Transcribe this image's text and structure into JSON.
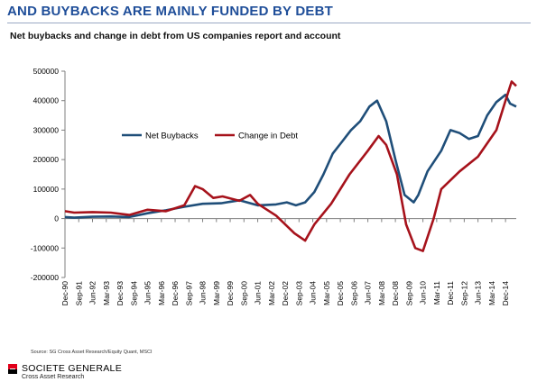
{
  "header": {
    "title": "AND BUYBACKS ARE MAINLY FUNDED BY DEBT",
    "subtitle": "Net buybacks and change in debt from US companies report and account"
  },
  "footer": {
    "source": "Source: SG Cross Asset Research/Equity Quant, MSCI",
    "brand_name": "SOCIETE GENERALE",
    "brand_sub": "Cross Asset Research"
  },
  "colors": {
    "accent": "#1f4e99",
    "brand_red": "#e2001a"
  },
  "chart_data": {
    "type": "line",
    "title": "Net buybacks and change in debt from US companies report and account",
    "xlabel": "",
    "ylabel": "",
    "x_domain": [
      "1990-12",
      "2015-07"
    ],
    "ylim": [
      -200000,
      500000
    ],
    "y_ticks": [
      -200000,
      -100000,
      0,
      100000,
      200000,
      300000,
      400000,
      500000
    ],
    "x_ticks": [
      {
        "date": "1990-12",
        "label": "Dec-90"
      },
      {
        "date": "1991-09",
        "label": "Sep-91"
      },
      {
        "date": "1992-06",
        "label": "Jun-92"
      },
      {
        "date": "1993-03",
        "label": "Mar-93"
      },
      {
        "date": "1993-12",
        "label": "Dec-93"
      },
      {
        "date": "1994-09",
        "label": "Sep-94"
      },
      {
        "date": "1995-06",
        "label": "Jun-95"
      },
      {
        "date": "1996-03",
        "label": "Mar-96"
      },
      {
        "date": "1996-12",
        "label": "Dec-96"
      },
      {
        "date": "1997-09",
        "label": "Sep-97"
      },
      {
        "date": "1998-06",
        "label": "Jun-98"
      },
      {
        "date": "1999-03",
        "label": "Mar-99"
      },
      {
        "date": "1999-12",
        "label": "Dec-99"
      },
      {
        "date": "2000-09",
        "label": "Sep-00"
      },
      {
        "date": "2001-06",
        "label": "Jun-01"
      },
      {
        "date": "2002-03",
        "label": "Mar-02"
      },
      {
        "date": "2002-12",
        "label": "Dec-02"
      },
      {
        "date": "2003-09",
        "label": "Sep-03"
      },
      {
        "date": "2004-06",
        "label": "Jun-04"
      },
      {
        "date": "2005-03",
        "label": "Mar-05"
      },
      {
        "date": "2005-12",
        "label": "Dec-05"
      },
      {
        "date": "2006-09",
        "label": "Sep-06"
      },
      {
        "date": "2007-06",
        "label": "Jun-07"
      },
      {
        "date": "2008-03",
        "label": "Mar-08"
      },
      {
        "date": "2008-12",
        "label": "Dec-08"
      },
      {
        "date": "2009-09",
        "label": "Sep-09"
      },
      {
        "date": "2010-06",
        "label": "Jun-10"
      },
      {
        "date": "2011-03",
        "label": "Mar-11"
      },
      {
        "date": "2011-12",
        "label": "Dec-11"
      },
      {
        "date": "2012-09",
        "label": "Sep-12"
      },
      {
        "date": "2013-06",
        "label": "Jun-13"
      },
      {
        "date": "2014-03",
        "label": "Mar-14"
      },
      {
        "date": "2014-12",
        "label": "Dec-14"
      }
    ],
    "grid": false,
    "legend_position": "top-center",
    "series": [
      {
        "name": "Net Buybacks",
        "color": "#1f4e79",
        "points": [
          [
            "1990-12",
            5000
          ],
          [
            "1991-06",
            3000
          ],
          [
            "1992-06",
            6000
          ],
          [
            "1993-06",
            7000
          ],
          [
            "1994-06",
            5000
          ],
          [
            "1995-06",
            18000
          ],
          [
            "1996-06",
            28000
          ],
          [
            "1997-06",
            40000
          ],
          [
            "1998-06",
            50000
          ],
          [
            "1999-06",
            52000
          ],
          [
            "2000-06",
            62000
          ],
          [
            "2001-06",
            45000
          ],
          [
            "2002-06",
            48000
          ],
          [
            "2003-01",
            55000
          ],
          [
            "2003-07",
            45000
          ],
          [
            "2004-01",
            55000
          ],
          [
            "2004-07",
            90000
          ],
          [
            "2005-01",
            150000
          ],
          [
            "2005-07",
            220000
          ],
          [
            "2006-01",
            260000
          ],
          [
            "2006-07",
            300000
          ],
          [
            "2007-01",
            330000
          ],
          [
            "2007-07",
            380000
          ],
          [
            "2007-12",
            400000
          ],
          [
            "2008-06",
            330000
          ],
          [
            "2008-12",
            200000
          ],
          [
            "2009-06",
            80000
          ],
          [
            "2009-12",
            55000
          ],
          [
            "2010-03",
            80000
          ],
          [
            "2010-09",
            160000
          ],
          [
            "2011-06",
            230000
          ],
          [
            "2011-12",
            300000
          ],
          [
            "2012-06",
            290000
          ],
          [
            "2012-12",
            270000
          ],
          [
            "2013-06",
            280000
          ],
          [
            "2013-12",
            350000
          ],
          [
            "2014-06",
            395000
          ],
          [
            "2014-12",
            420000
          ],
          [
            "2015-03",
            390000
          ],
          [
            "2015-07",
            380000
          ]
        ]
      },
      {
        "name": "Change in Debt",
        "color": "#a6121b",
        "points": [
          [
            "1990-12",
            25000
          ],
          [
            "1991-06",
            20000
          ],
          [
            "1992-06",
            22000
          ],
          [
            "1993-06",
            20000
          ],
          [
            "1994-06",
            12000
          ],
          [
            "1995-06",
            30000
          ],
          [
            "1996-06",
            25000
          ],
          [
            "1997-06",
            45000
          ],
          [
            "1998-01",
            110000
          ],
          [
            "1998-06",
            100000
          ],
          [
            "1999-01",
            70000
          ],
          [
            "1999-07",
            75000
          ],
          [
            "2000-06",
            60000
          ],
          [
            "2001-01",
            80000
          ],
          [
            "2001-06",
            50000
          ],
          [
            "2002-06",
            10000
          ],
          [
            "2003-06",
            -50000
          ],
          [
            "2004-01",
            -75000
          ],
          [
            "2004-07",
            -20000
          ],
          [
            "2005-06",
            50000
          ],
          [
            "2006-06",
            150000
          ],
          [
            "2007-06",
            230000
          ],
          [
            "2008-01",
            280000
          ],
          [
            "2008-06",
            250000
          ],
          [
            "2009-01",
            150000
          ],
          [
            "2009-07",
            -20000
          ],
          [
            "2010-01",
            -100000
          ],
          [
            "2010-06",
            -110000
          ],
          [
            "2011-01",
            0
          ],
          [
            "2011-06",
            100000
          ],
          [
            "2012-06",
            160000
          ],
          [
            "2013-06",
            210000
          ],
          [
            "2014-06",
            300000
          ],
          [
            "2014-12",
            400000
          ],
          [
            "2015-04",
            465000
          ],
          [
            "2015-07",
            450000
          ]
        ]
      }
    ]
  }
}
